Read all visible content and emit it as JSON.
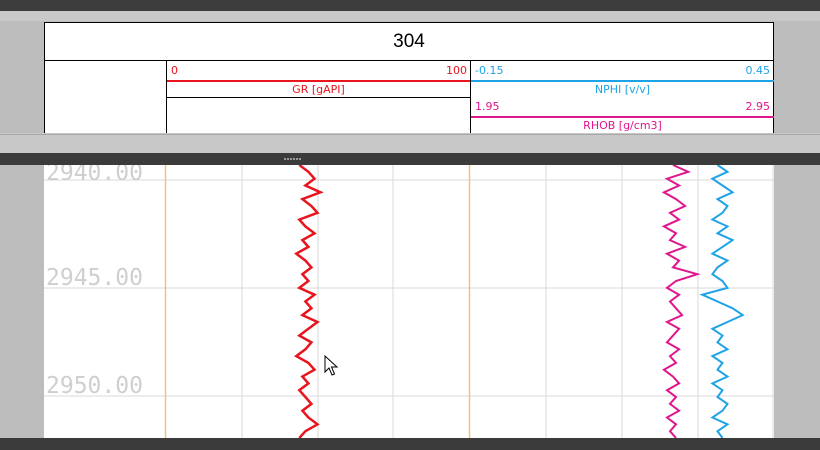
{
  "well": {
    "title": "304"
  },
  "tracks": {
    "gr": {
      "min": "0",
      "max": "100",
      "name": "GR [gAPI]",
      "color": "#e8141e"
    },
    "nphi": {
      "min": "-0.15",
      "max": "0.45",
      "name": "NPHI [v/v]",
      "color": "#1ea3e6"
    },
    "rhob": {
      "min": "1.95",
      "max": "2.95",
      "name": "RHOB [g/cm3]",
      "color": "#e0168c"
    }
  },
  "depths": {
    "d1": "2940.00",
    "d2": "2945.00",
    "d3": "2950.00"
  },
  "curves": {
    "depth_range": [
      2939.7,
      2952.4
    ],
    "gr_values": [
      44,
      47,
      49,
      46,
      51,
      45,
      48,
      50,
      44,
      46,
      49,
      45,
      47,
      43,
      46,
      48,
      45,
      47,
      44,
      49,
      46,
      48,
      45,
      50,
      47,
      44,
      48,
      46,
      43,
      47,
      49,
      45,
      47,
      44,
      46,
      48,
      45,
      47,
      50,
      46,
      44
    ],
    "nphi_values": [
      0.34,
      0.36,
      0.33,
      0.35,
      0.37,
      0.34,
      0.36,
      0.35,
      0.33,
      0.36,
      0.34,
      0.37,
      0.35,
      0.33,
      0.36,
      0.34,
      0.33,
      0.35,
      0.36,
      0.31,
      0.34,
      0.37,
      0.39,
      0.36,
      0.33,
      0.35,
      0.34,
      0.36,
      0.33,
      0.35,
      0.34,
      0.36,
      0.33,
      0.35,
      0.34,
      0.36,
      0.35,
      0.33,
      0.36,
      0.34,
      0.35
    ],
    "rhob_values": [
      2.62,
      2.67,
      2.6,
      2.64,
      2.59,
      2.63,
      2.66,
      2.61,
      2.64,
      2.59,
      2.63,
      2.61,
      2.66,
      2.6,
      2.64,
      2.62,
      2.7,
      2.63,
      2.6,
      2.64,
      2.61,
      2.63,
      2.65,
      2.6,
      2.64,
      2.62,
      2.6,
      2.64,
      2.61,
      2.63,
      2.59,
      2.62,
      2.64,
      2.6,
      2.63,
      2.61,
      2.64,
      2.6,
      2.63,
      2.61,
      2.63
    ]
  }
}
